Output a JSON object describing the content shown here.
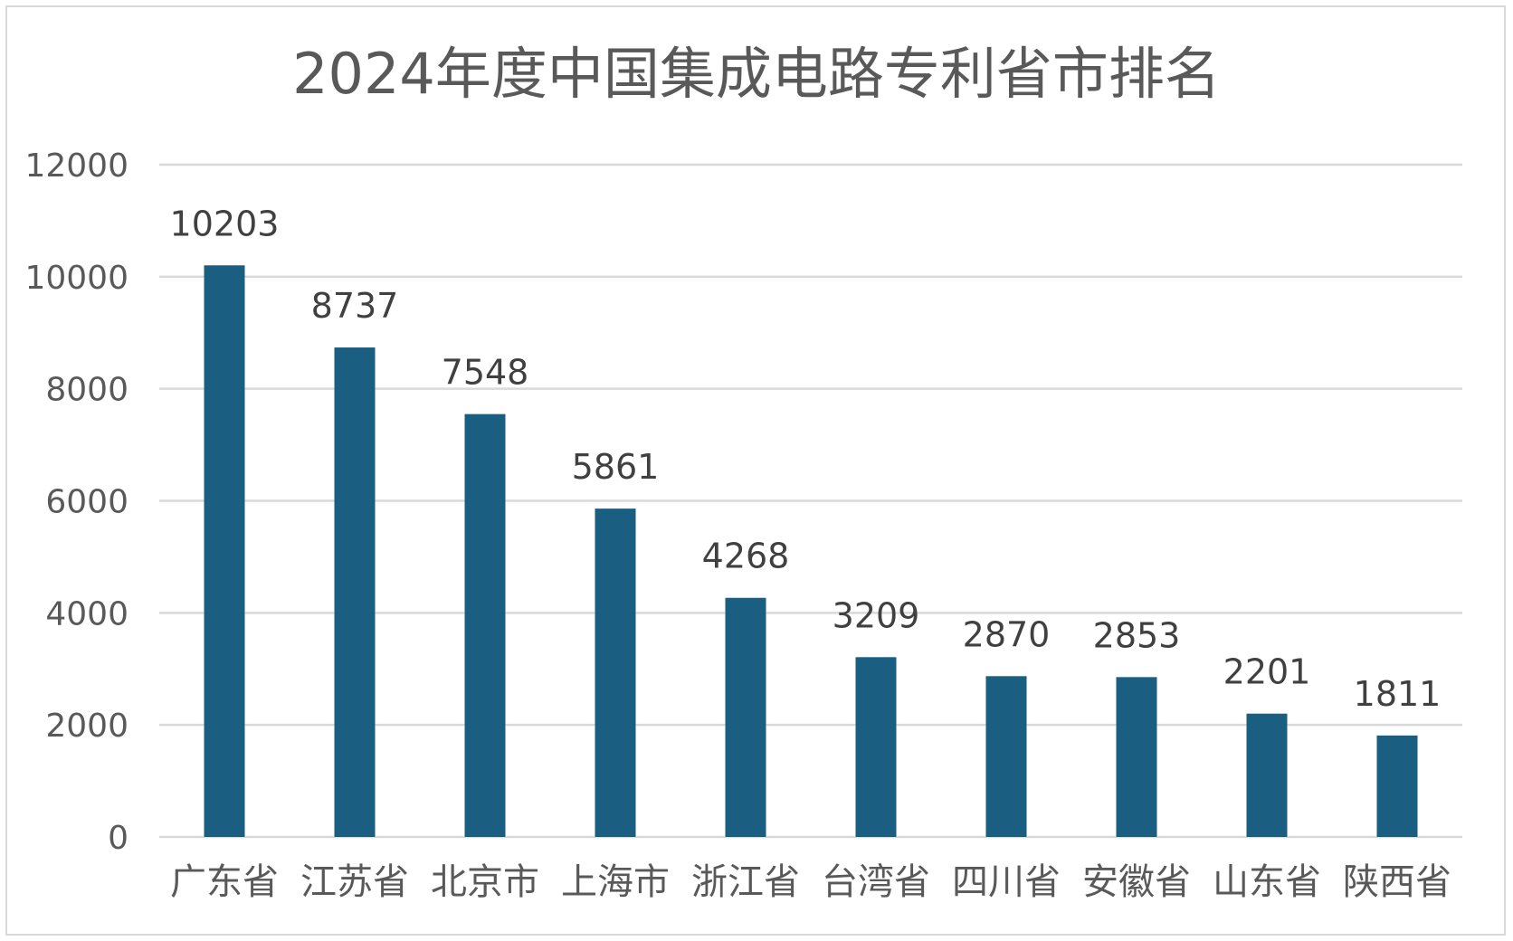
{
  "chart_data": {
    "type": "bar",
    "title": "2024年度中国集成电路专利省市排名",
    "categories": [
      "广东省",
      "江苏省",
      "北京市",
      "上海市",
      "浙江省",
      "台湾省",
      "四川省",
      "安徽省",
      "山东省",
      "陕西省"
    ],
    "values": [
      10203,
      8737,
      7548,
      5861,
      4268,
      3209,
      2870,
      2853,
      2201,
      1811
    ],
    "ylim": [
      0,
      12000
    ],
    "yticks": [
      0,
      2000,
      4000,
      6000,
      8000,
      10000,
      12000
    ],
    "xlabel": "",
    "ylabel": "",
    "grid": true,
    "legend": "none",
    "data_labels": true,
    "colors": {
      "bar": "#1a5e82",
      "grid": "#d9d9d9",
      "text": "#595959",
      "border": "#d9d9d9"
    }
  }
}
